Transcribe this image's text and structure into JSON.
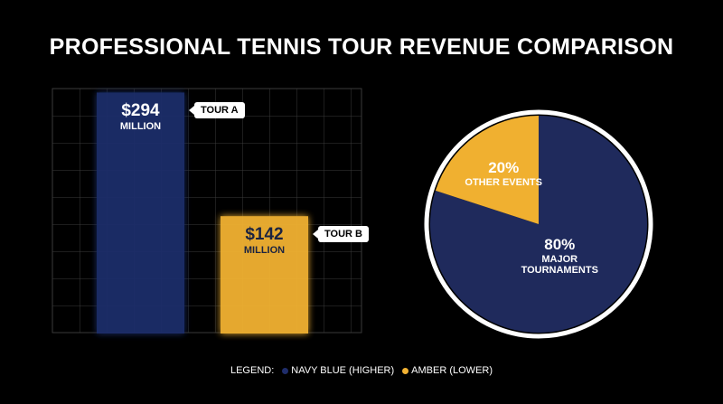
{
  "title": "PROFESSIONAL TENNIS TOUR REVENUE COMPARISON",
  "chart_data": [
    {
      "type": "bar",
      "categories": [
        "TOUR A",
        "TOUR B"
      ],
      "values": [
        294,
        142
      ],
      "value_labels": [
        "$294",
        "$142"
      ],
      "value_unit_label": "MILLION",
      "colors": [
        "#1f2d6b",
        "#f2b233"
      ],
      "ylim": [
        0,
        300
      ],
      "grid": true
    },
    {
      "type": "pie",
      "categories": [
        "MAJOR TOURNAMENTS",
        "OTHER EVENTS"
      ],
      "values": [
        80,
        20
      ],
      "value_labels": [
        "80%",
        "20%"
      ],
      "colors": [
        "#1f2a5c",
        "#f0b030"
      ]
    }
  ],
  "legend": {
    "title": "LEGEND:",
    "items": [
      {
        "label": "NAVY BLUE (HIGHER)",
        "color": "#1f2d6b"
      },
      {
        "label": "AMBER (LOWER)",
        "color": "#f2b233"
      }
    ]
  }
}
